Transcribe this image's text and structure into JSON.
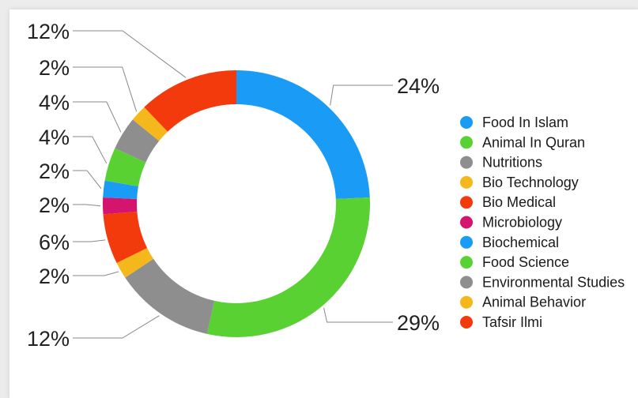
{
  "chart_data": {
    "type": "pie",
    "donut": true,
    "legend_position": "right",
    "slices": [
      {
        "label": "Food In Islam",
        "value": 24,
        "display": "24%",
        "color": "#1a9bf5"
      },
      {
        "label": "Animal In Quran",
        "value": 29,
        "display": "29%",
        "color": "#5ad133"
      },
      {
        "label": "Nutritions",
        "value": 12,
        "display": "12%",
        "color": "#8e8e8e"
      },
      {
        "label": "Bio Technology",
        "value": 2,
        "display": "2%",
        "color": "#f5b81c"
      },
      {
        "label": "Bio Medical",
        "value": 6,
        "display": "6%",
        "color": "#f23a0c"
      },
      {
        "label": "Microbiology",
        "value": 2,
        "display": "2%",
        "color": "#d4146d"
      },
      {
        "label": "Biochemical",
        "value": 2,
        "display": "2%",
        "color": "#1a9bf5"
      },
      {
        "label": "Food Science",
        "value": 4,
        "display": "4%",
        "color": "#5ad133"
      },
      {
        "label": "Environmental Studies",
        "value": 4,
        "display": "4%",
        "color": "#8e8e8e"
      },
      {
        "label": "Animal Behavior",
        "value": 2,
        "display": "2%",
        "color": "#f5b81c"
      },
      {
        "label": "Tafsir Ilmi",
        "value": 12,
        "display": "12%",
        "color": "#f23a0c"
      }
    ]
  }
}
